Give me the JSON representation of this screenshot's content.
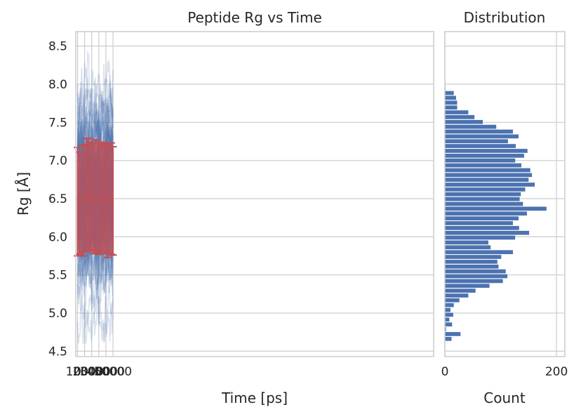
{
  "chart_data": [
    {
      "type": "line",
      "title": "Peptide Rg vs Time",
      "xlabel": "Time [ps]",
      "ylabel": "Rg [Å]",
      "xlim": [
        -2500,
        502500
      ],
      "ylim": [
        4.43,
        8.69
      ],
      "x_ticks": [
        0,
        10000,
        20000,
        30000,
        40000,
        50000
      ],
      "y_ticks": [
        4.5,
        5.0,
        5.5,
        6.0,
        6.5,
        7.0,
        7.5,
        8.0,
        8.5
      ],
      "tick_labels_x": [
        "0",
        "10000",
        "20000",
        "30000",
        "40000",
        "50000"
      ],
      "tick_labels_y": [
        "4.5",
        "5.0",
        "5.5",
        "6.0",
        "6.5",
        "7.0",
        "7.5",
        "8.0",
        "8.5"
      ],
      "grid": true,
      "trajectory_color": "#4c72b0",
      "trajectory_count": 100,
      "mean_series": {
        "color": "#c44e52",
        "x": [
          0,
          2500,
          5000,
          7500,
          10000,
          12500,
          15000,
          17500,
          20000,
          22500,
          25000,
          27500,
          30000,
          32500,
          35000,
          37500,
          40000,
          42500,
          45000,
          47500,
          50000
        ],
        "mean": [
          6.46,
          6.44,
          6.45,
          6.48,
          6.5,
          6.55,
          6.55,
          6.53,
          6.51,
          6.5,
          6.53,
          6.53,
          6.5,
          6.48,
          6.51,
          6.51,
          6.5,
          6.48,
          6.49,
          6.5,
          6.47
        ],
        "std": [
          0.71,
          0.67,
          0.66,
          0.73,
          0.69,
          0.74,
          0.74,
          0.71,
          0.68,
          0.72,
          0.74,
          0.74,
          0.73,
          0.7,
          0.7,
          0.73,
          0.72,
          0.75,
          0.71,
          0.73,
          0.71
        ]
      }
    },
    {
      "type": "bar",
      "orientation": "horizontal",
      "title": "Distribution",
      "xlabel": "Count",
      "ylabel": "",
      "xlim": [
        0,
        215
      ],
      "ylim": [
        4.43,
        8.69
      ],
      "x_ticks": [
        0,
        200
      ],
      "tick_labels_x": [
        "0",
        "200"
      ],
      "grid": true,
      "color": "#4c72b0",
      "bin_edges_start": 4.63,
      "bin_width": 0.0632,
      "counts": [
        12,
        28,
        2,
        13,
        8,
        15,
        10,
        16,
        26,
        42,
        55,
        80,
        104,
        112,
        109,
        96,
        94,
        101,
        122,
        82,
        78,
        126,
        151,
        133,
        122,
        132,
        147,
        182,
        140,
        134,
        136,
        144,
        161,
        150,
        156,
        153,
        137,
        126,
        142,
        148,
        127,
        113,
        132,
        122,
        92,
        68,
        53,
        42,
        22,
        22,
        20,
        16,
        1
      ]
    }
  ]
}
